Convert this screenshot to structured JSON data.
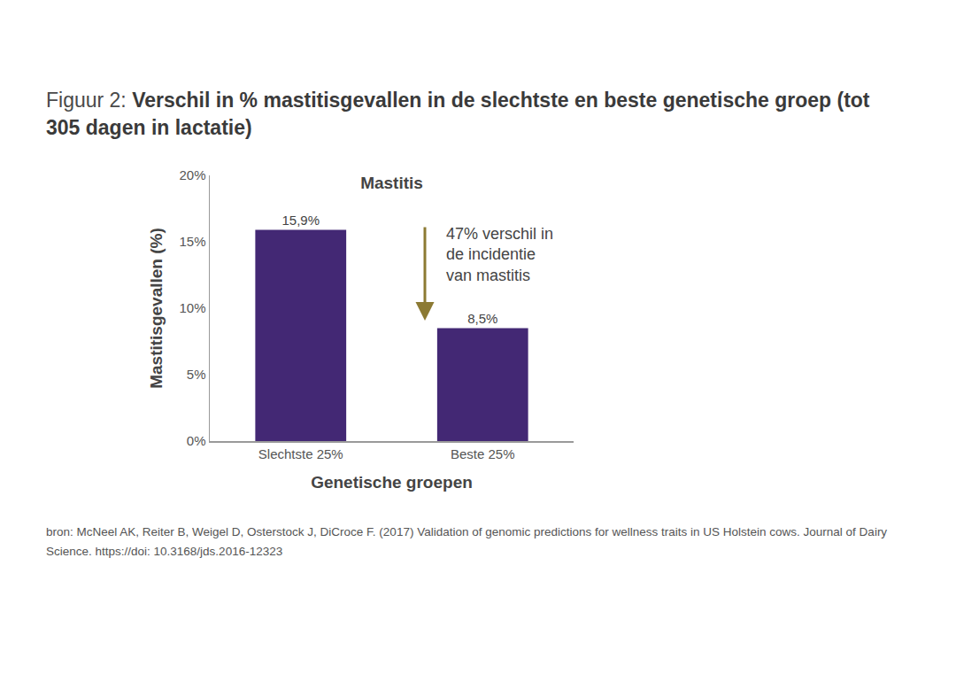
{
  "chart_data": {
    "type": "bar",
    "title": "Figuur 2: Verschil in % mastitisgevallen in de slechtste en beste genetische groep (tot 305 dagen in lactatie)",
    "subtitle": "Mastitis",
    "x_label": "Genetische groepen",
    "y_label": "Mastitisgevallen (%)",
    "categories": [
      "Slechtste 25%",
      "Beste 25%"
    ],
    "values": [
      15.9,
      8.5
    ],
    "value_labels": [
      "15,9%",
      "8,5%"
    ],
    "data_labels": true,
    "color": "#432874",
    "ylim": [
      0,
      20
    ],
    "yticks": [
      {
        "value": 0,
        "label": "0%"
      },
      {
        "value": 5,
        "label": "5%"
      },
      {
        "value": 10,
        "label": "10%"
      },
      {
        "value": 15,
        "label": "15%"
      },
      {
        "value": 20,
        "label": "20%"
      }
    ],
    "grid": false,
    "annotation": "47% verschil in de incidentie van mastitis",
    "source": "bron:  McNeel AK, Reiter B, Weigel D, Osterstock J, DiCroce F. (2017) Validation of genomic predictions for wellness traits in US Holstein cows. Journal of Dairy Science. https://doi: 10.3168/jds.2016-12323"
  }
}
